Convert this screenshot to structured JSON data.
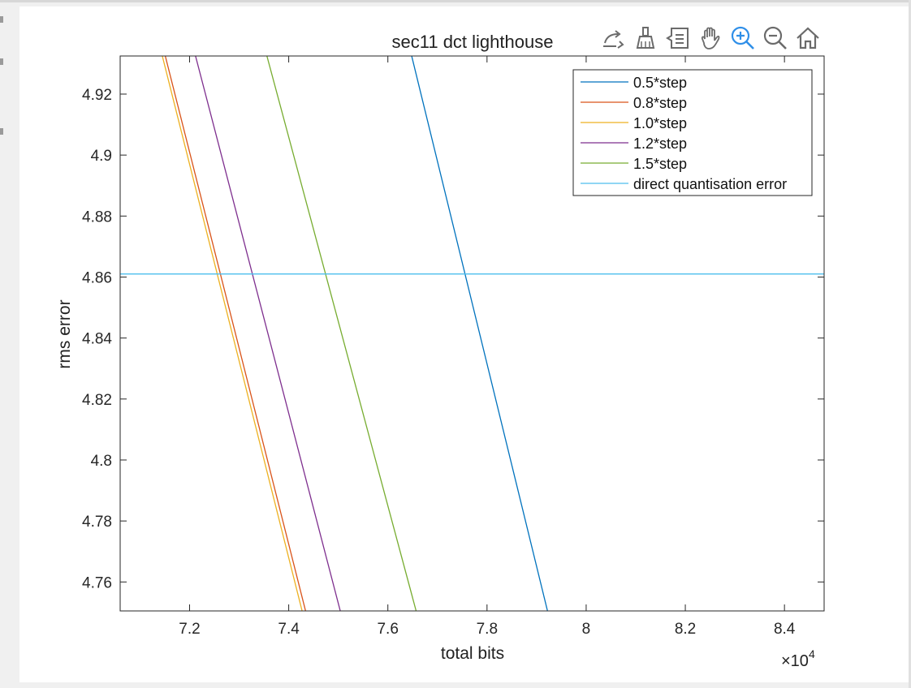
{
  "toolbar": {
    "icons": [
      "export-icon",
      "brush-icon",
      "datatip-icon",
      "pan-icon",
      "zoom-in-icon",
      "zoom-out-icon",
      "home-icon"
    ],
    "active": "zoom-in-icon",
    "active_color": "#2f8fe8",
    "icon_color": "#6b6b6b"
  },
  "chart_data": {
    "type": "line",
    "title": "sec11 dct lighthouse",
    "xlabel": "total bits",
    "ylabel": "rms error",
    "x_exponent_label": "×10",
    "x_exponent_power": "4",
    "xlim": [
      7.06,
      8.48
    ],
    "ylim": [
      4.7505,
      4.9325
    ],
    "x_ticks": [
      7.2,
      7.4,
      7.6,
      7.8,
      8,
      8.2,
      8.4
    ],
    "x_tick_labels": [
      "7.2",
      "7.4",
      "7.6",
      "7.8",
      "8",
      "8.2",
      "8.4"
    ],
    "y_ticks": [
      4.76,
      4.78,
      4.8,
      4.82,
      4.84,
      4.86,
      4.88,
      4.9,
      4.92
    ],
    "y_tick_labels": [
      "4.76",
      "4.78",
      "4.8",
      "4.82",
      "4.84",
      "4.86",
      "4.88",
      "4.9",
      "4.92"
    ],
    "grid": false,
    "legend_position": "top-right",
    "series": [
      {
        "name": "0.5*step",
        "color": "#0072bd",
        "x": [
          7.648,
          7.922
        ],
        "y": [
          4.9325,
          4.7505
        ]
      },
      {
        "name": "0.8*step",
        "color": "#d95319",
        "x": [
          7.151,
          7.434
        ],
        "y": [
          4.9325,
          4.7505
        ]
      },
      {
        "name": "1.0*step",
        "color": "#edb120",
        "x": [
          7.145,
          7.427
        ],
        "y": [
          4.9325,
          4.7505
        ]
      },
      {
        "name": "1.2*step",
        "color": "#7e2f8e",
        "x": [
          7.212,
          7.504
        ],
        "y": [
          4.9325,
          4.7505
        ]
      },
      {
        "name": "1.5*step",
        "color": "#77ac30",
        "x": [
          7.356,
          7.657
        ],
        "y": [
          4.9325,
          4.7505
        ]
      },
      {
        "name": "direct quantisation error",
        "color": "#4dbeee",
        "x": [
          7.06,
          8.48
        ],
        "y": [
          4.861,
          4.861
        ]
      }
    ]
  }
}
